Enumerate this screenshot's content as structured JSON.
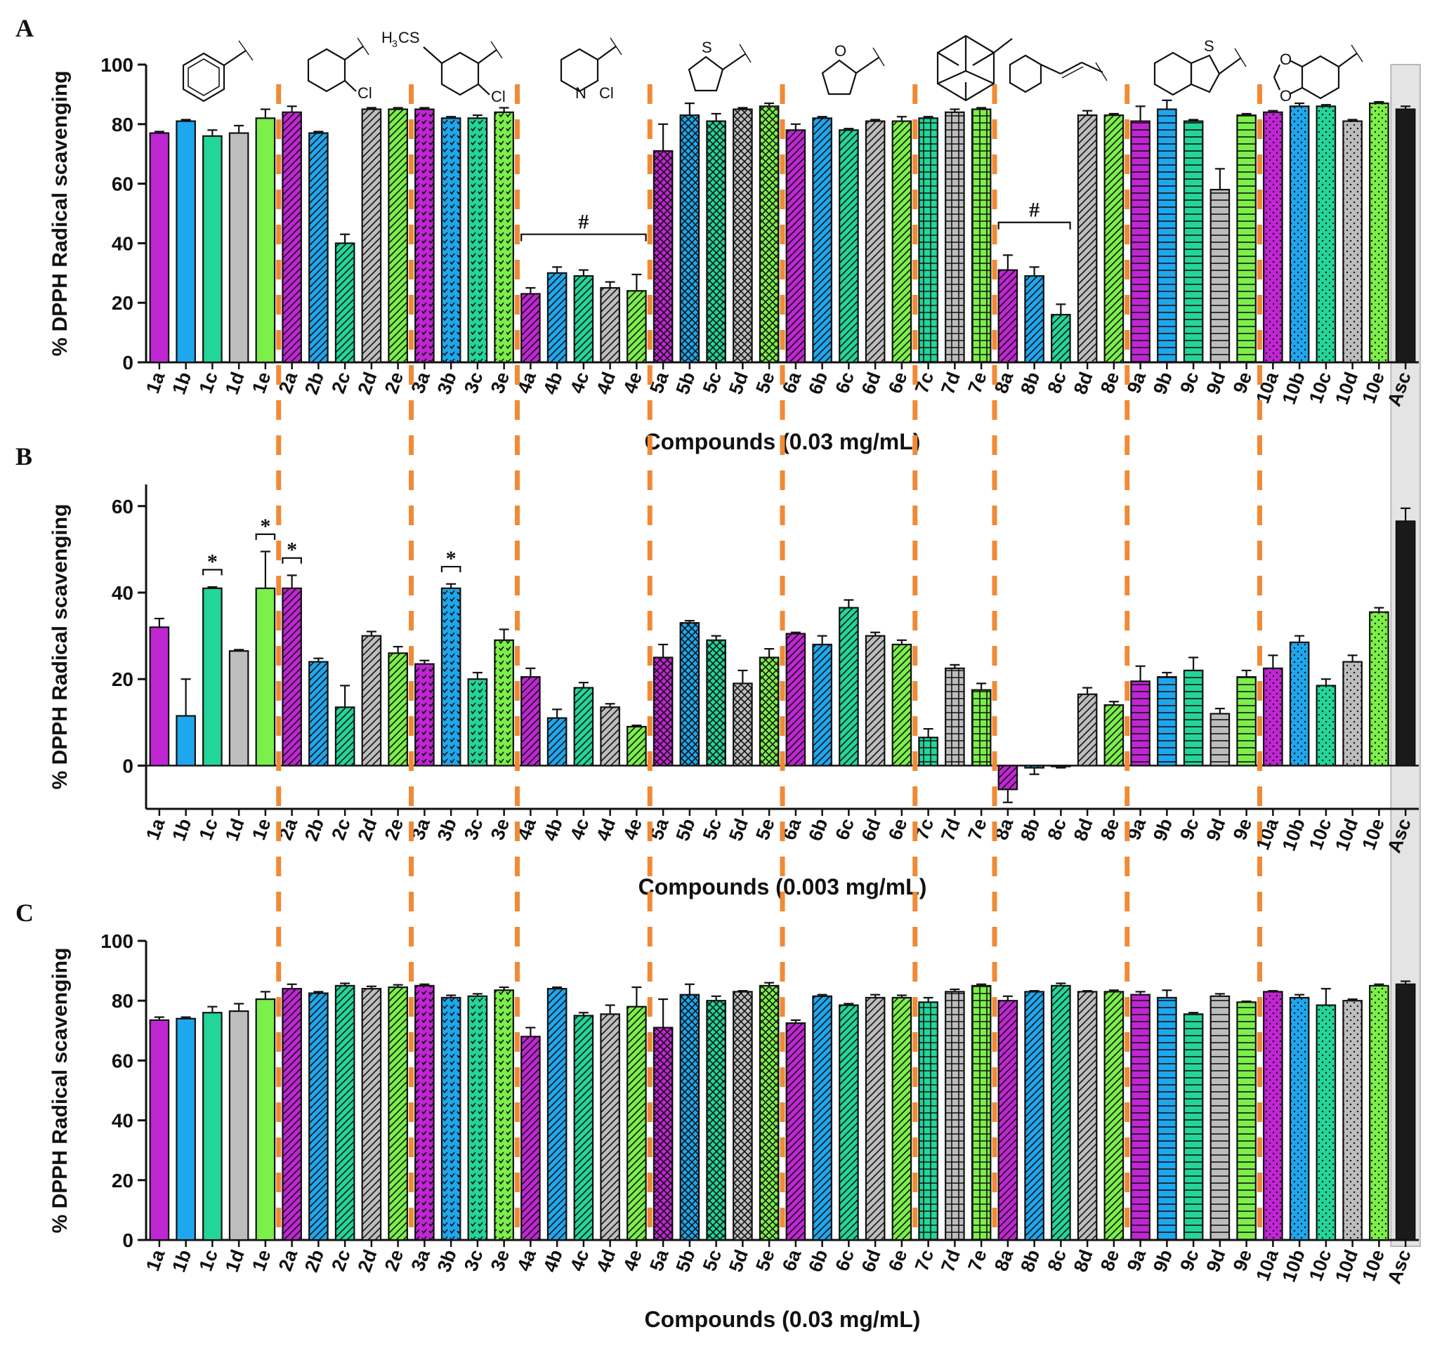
{
  "colors": {
    "a": "#c026d3",
    "b": "#1ea7ee",
    "c": "#22d69a",
    "d": "#bdbdbd",
    "e": "#7cef4a",
    "Asc": "#1a1a1a",
    "divider": "#f08a36"
  },
  "categories": [
    "1a",
    "1b",
    "1c",
    "1d",
    "1e",
    "2a",
    "2b",
    "2c",
    "2d",
    "2e",
    "3a",
    "3b",
    "3c",
    "3e",
    "4a",
    "4b",
    "4c",
    "4d",
    "4e",
    "5a",
    "5b",
    "5c",
    "5d",
    "5e",
    "6a",
    "6b",
    "6c",
    "6d",
    "6e",
    "7c",
    "7d",
    "7e",
    "8a",
    "8b",
    "8c",
    "8d",
    "8e",
    "9a",
    "9b",
    "9c",
    "9d",
    "9e",
    "10a",
    "10b",
    "10c",
    "10d",
    "10e",
    "Asc"
  ],
  "structure_labels": {
    "s2_sub": "Cl",
    "s3_top": "H",
    "s3_sub3": "3",
    "s3_cs": "CS",
    "s3_sub": "Cl",
    "s4_n": "N",
    "s4_sub": "Cl",
    "s5_het": "S",
    "s6_het": "O",
    "s9_het": "S",
    "s10_o1": "O",
    "s10_o2": "O"
  },
  "chart_data": [
    {
      "panel": "A",
      "type": "bar",
      "ylabel": "% DPPH Radical scavenging",
      "xlabel": "Compounds (0.03 mg/mL)",
      "ylim": [
        0,
        100
      ],
      "yticks": [
        0,
        20,
        40,
        60,
        80,
        100
      ],
      "values": [
        77,
        81,
        76,
        77,
        82,
        84,
        77,
        40,
        85,
        85,
        85,
        82,
        82,
        84,
        23,
        30,
        29,
        25,
        24,
        71,
        83,
        81,
        85,
        86,
        78,
        82,
        78,
        81,
        81,
        82,
        84,
        85,
        31,
        29,
        16,
        83,
        83,
        81,
        85,
        81,
        58,
        83,
        84,
        86,
        86,
        81,
        87,
        85
      ],
      "errors": [
        0.5,
        0.5,
        2,
        2.5,
        3,
        2,
        0.5,
        3,
        0.5,
        0.5,
        0.5,
        0.5,
        1,
        1.5,
        2,
        2,
        2,
        2,
        5.5,
        9,
        4,
        2.5,
        0.5,
        1,
        2,
        0.5,
        0.5,
        0.5,
        1.5,
        0.5,
        1,
        0.5,
        5,
        3,
        3.5,
        1.5,
        0.5,
        5,
        3,
        0.5,
        7,
        0.5,
        0.5,
        1,
        0.5,
        0.5,
        0.5,
        1
      ],
      "annotations": [
        {
          "text": "#",
          "from": "4a",
          "to": "4e"
        },
        {
          "text": "#",
          "from": "8a",
          "to": "8c"
        }
      ]
    },
    {
      "panel": "B",
      "type": "bar",
      "ylabel": "% DPPH Radical scavenging",
      "xlabel": "Compounds (0.003 mg/mL)",
      "ylim": [
        -10,
        65
      ],
      "yticks": [
        0,
        20,
        40,
        60
      ],
      "values": [
        32,
        11.5,
        41,
        26.5,
        41,
        41,
        24,
        13.5,
        30,
        26,
        23.5,
        41,
        20,
        29,
        20.5,
        11,
        18,
        13.5,
        9,
        25,
        33,
        29,
        19,
        25,
        30.5,
        28,
        36.5,
        30,
        28,
        6.5,
        22.5,
        17.5,
        -5.5,
        -0.5,
        -0.2,
        16.5,
        14,
        19.5,
        20.5,
        22,
        12,
        20.5,
        22.5,
        28.5,
        18.5,
        24,
        35.5,
        56.5
      ],
      "errors": [
        2,
        8.5,
        0.3,
        0.3,
        8.5,
        3,
        0.8,
        5,
        1,
        1.5,
        0.8,
        1,
        1.5,
        2.5,
        2,
        2,
        1.2,
        0.8,
        0.3,
        3,
        0.5,
        1,
        3,
        2,
        0.3,
        2,
        1.8,
        0.8,
        1,
        2,
        0.8,
        1.5,
        3,
        1.5,
        0.3,
        1.5,
        0.8,
        3.5,
        1,
        3,
        1.2,
        1.5,
        3,
        1.5,
        1.5,
        1.5,
        1,
        3
      ],
      "annotations": [
        {
          "text": "*",
          "from": "1c",
          "to": "1c"
        },
        {
          "text": "*",
          "from": "1e",
          "to": "1e"
        },
        {
          "text": "*",
          "from": "2a",
          "to": "2a"
        },
        {
          "text": "*",
          "from": "3b",
          "to": "3b"
        }
      ]
    },
    {
      "panel": "C",
      "type": "bar",
      "ylabel": "% DPPH Radical scavenging",
      "xlabel": "Compounds (0.03 mg/mL)",
      "ylim": [
        0,
        100
      ],
      "yticks": [
        0,
        20,
        40,
        60,
        80,
        100
      ],
      "values": [
        73.5,
        74,
        76,
        76.5,
        80.5,
        84,
        82.5,
        85,
        84,
        84.5,
        85,
        81,
        81.5,
        83.5,
        68,
        84,
        75,
        75.5,
        78,
        71,
        82,
        80,
        83,
        85,
        72.5,
        81.5,
        78.5,
        81,
        81,
        79.5,
        83,
        85,
        80,
        83,
        85,
        83,
        83,
        82,
        81,
        75.5,
        81.5,
        79.5,
        83,
        81,
        78.5,
        80,
        85,
        85.5
      ],
      "errors": [
        1,
        0.5,
        2,
        2.5,
        2.5,
        1.5,
        0.5,
        0.8,
        0.8,
        0.8,
        0.5,
        0.8,
        0.8,
        1,
        3,
        0.5,
        1,
        3,
        6.5,
        9.5,
        3.5,
        1.5,
        0.3,
        1,
        1,
        0.5,
        0.5,
        1,
        0.8,
        1.5,
        0.8,
        0.5,
        1.5,
        0.3,
        0.8,
        0.3,
        0.5,
        1,
        2.5,
        0.5,
        0.8,
        0.3,
        0.3,
        1,
        5.5,
        0.5,
        0.5,
        1
      ]
    }
  ]
}
